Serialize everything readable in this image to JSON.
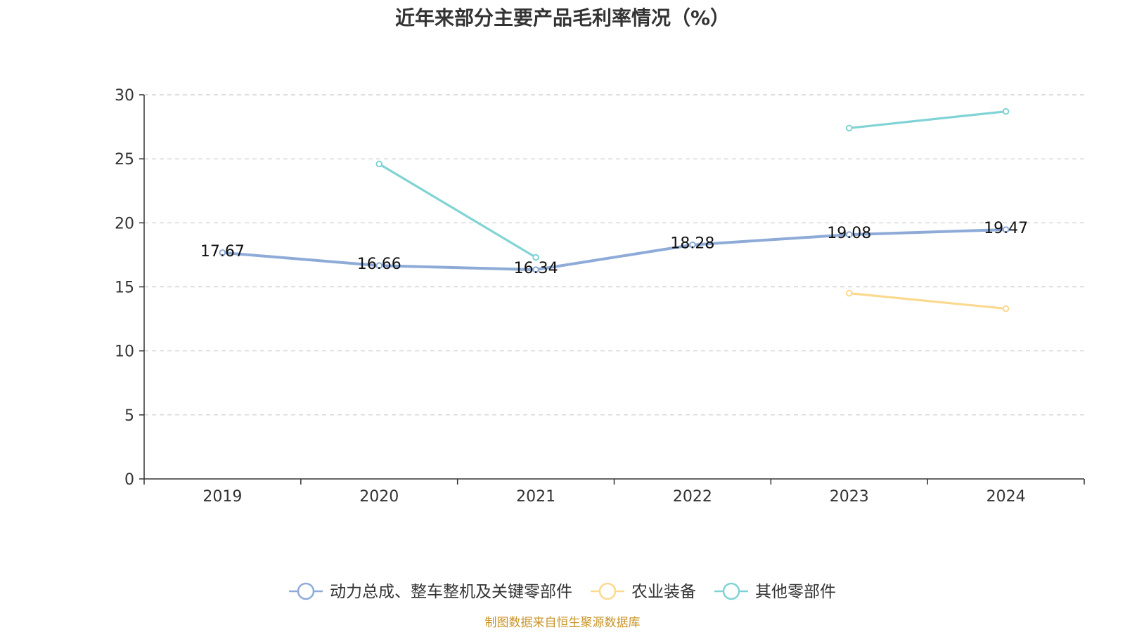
{
  "chart_data": {
    "type": "line",
    "title": "近年来部分主要产品毛利率情况（%）",
    "categories": [
      "2019",
      "2020",
      "2021",
      "2022",
      "2023",
      "2024"
    ],
    "ylim": [
      0,
      30
    ],
    "yticks": [
      0,
      5,
      10,
      15,
      20,
      25,
      30
    ],
    "grid": true,
    "legend_position": "bottom",
    "series": [
      {
        "name": "动力总成、整车整机及关键零部件",
        "color": "#8eabd8",
        "values": [
          17.67,
          16.66,
          16.34,
          18.28,
          19.08,
          19.47
        ],
        "show_labels": true
      },
      {
        "name": "农业装备",
        "color": "#fbd98f",
        "values": [
          null,
          null,
          null,
          null,
          14.5,
          13.3
        ],
        "show_labels": false
      },
      {
        "name": "其他零部件",
        "color": "#80d3d5",
        "values": [
          null,
          24.6,
          17.3,
          null,
          27.4,
          28.7
        ],
        "show_labels": false
      }
    ],
    "source": "制图数据来自恒生聚源数据库"
  }
}
